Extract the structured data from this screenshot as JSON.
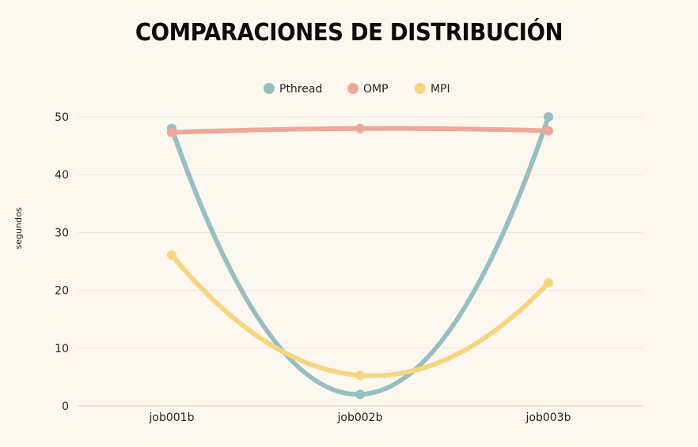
{
  "chart_data": {
    "type": "line",
    "title": "COMPARACIONES DE DISTRIBUCIÓN",
    "xlabel": "",
    "ylabel": "segundos",
    "categories": [
      "job001b",
      "job002b",
      "job003b"
    ],
    "ylim": [
      0,
      50
    ],
    "yticks": [
      0,
      10,
      20,
      30,
      40,
      50
    ],
    "grid": true,
    "legend_position": "top",
    "smooth": true,
    "series": [
      {
        "name": "Pthread",
        "color": "#97bec1",
        "values": [
          48,
          2,
          50
        ]
      },
      {
        "name": "OMP",
        "color": "#eba99a",
        "values": [
          47.3,
          48,
          47.6
        ]
      },
      {
        "name": "MPI",
        "color": "#f5d57f",
        "values": [
          26.1,
          5.3,
          21.3
        ]
      }
    ]
  }
}
